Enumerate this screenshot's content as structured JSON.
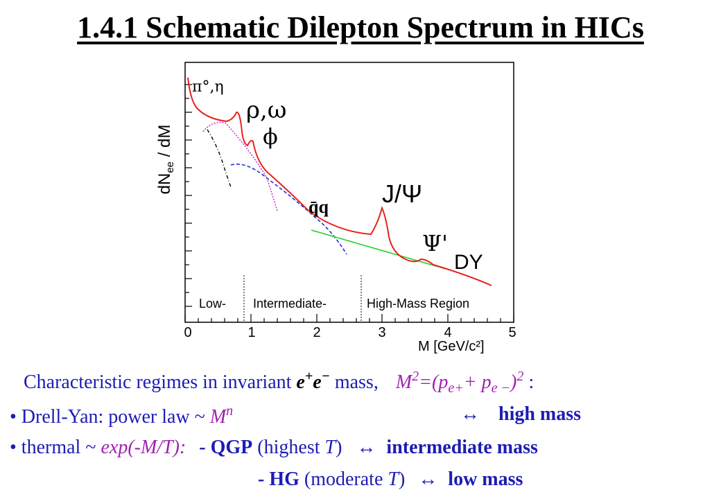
{
  "title": "1.4.1 Schematic Dilepton Spectrum in HICs",
  "figure": {
    "ylabel": "dNee / dM",
    "xlabel": "M [GeV/c²]",
    "x_ticks": [
      "0",
      "1",
      "2",
      "3",
      "4",
      "5"
    ],
    "regions": [
      "Low-",
      "Intermediate-",
      "High-Mass Region"
    ],
    "labels": {
      "pi_eta": "π°,η",
      "rho_omega": "ρ,ω",
      "phi": "ϕ",
      "qq": "q̄q",
      "jpsi": "J/Ψ",
      "psiprime": "Ψ'",
      "dy": "DY"
    },
    "colors": {
      "total": "#e8201c",
      "qgp": "#2030d8",
      "hg": "#d030d0",
      "dalitz": "#000000",
      "drell_yan": "#20d020"
    }
  },
  "text": {
    "line1_a": "Characteristic regimes in invariant",
    "line1_e": "e",
    "line1_plus": "+",
    "line1_e2": "e",
    "line1_minus": "−",
    "line1_b": "mass,",
    "line1_M": "M",
    "line1_2": "2",
    "line1_eq": "=(p",
    "line1_ep": "e+",
    "line1_plus2": "+ p",
    "line1_em": "e −",
    "line1_close": ")",
    "line1_2b": "2",
    "line1_colon": ":",
    "line2_a": "• Drell-Yan: power law ~",
    "line2_M": "M",
    "line2_n": "n",
    "line2_arrow": "↔",
    "line2_b": "high mass",
    "line3_a": "• thermal ~",
    "line3_b": "exp(-M/T):",
    "line3_c": "- QGP",
    "line3_d": "(highest",
    "line3_T": "T",
    "line3_e": ")",
    "line3_arrow": "↔",
    "line3_f": "intermediate mass",
    "line4_c": "- HG",
    "line4_d": "(moderate",
    "line4_T": "T",
    "line4_e": ")",
    "line4_arrow": "↔",
    "line4_f": "low mass"
  }
}
